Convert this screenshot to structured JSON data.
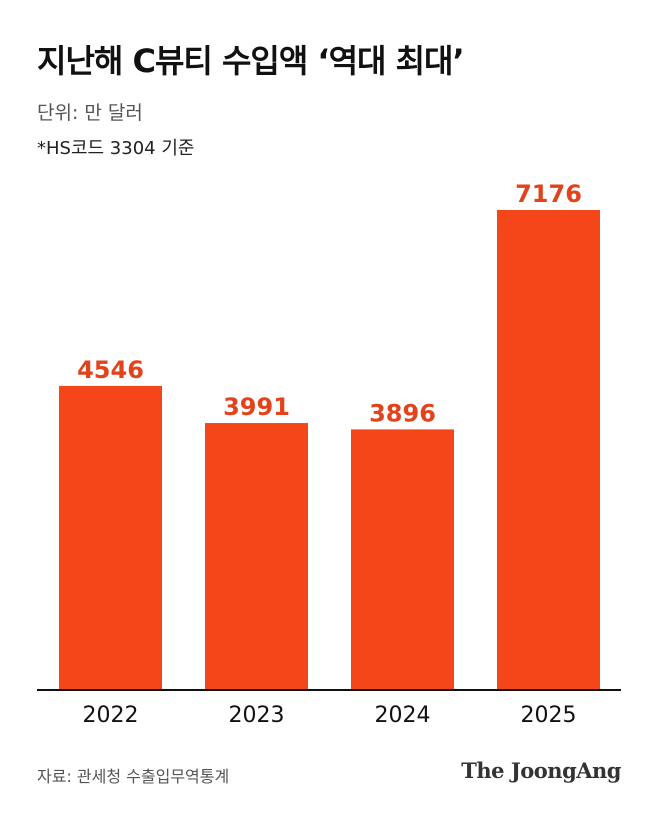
{
  "header": {
    "title": "지난해 C뷰티 수입액 ‘역대 최대’",
    "unit": "단위: 만 달러",
    "note": "*HS코드 3304 기준"
  },
  "footer": {
    "source": "자료: 관세청 수출입무역통계",
    "brand": "The JoongAng"
  },
  "colors": {
    "bar": "#F5461A",
    "value_label": "#E2431A",
    "axis": "#111111"
  },
  "chart_data": {
    "type": "bar",
    "categories": [
      "2022",
      "2023",
      "2024",
      "2025"
    ],
    "values": [
      4546,
      3991,
      3896,
      7176
    ],
    "value_labels": [
      "4546",
      "3991",
      "3896",
      "7176"
    ],
    "ylim": [
      0,
      7800
    ],
    "grid": false,
    "legend": "none"
  }
}
